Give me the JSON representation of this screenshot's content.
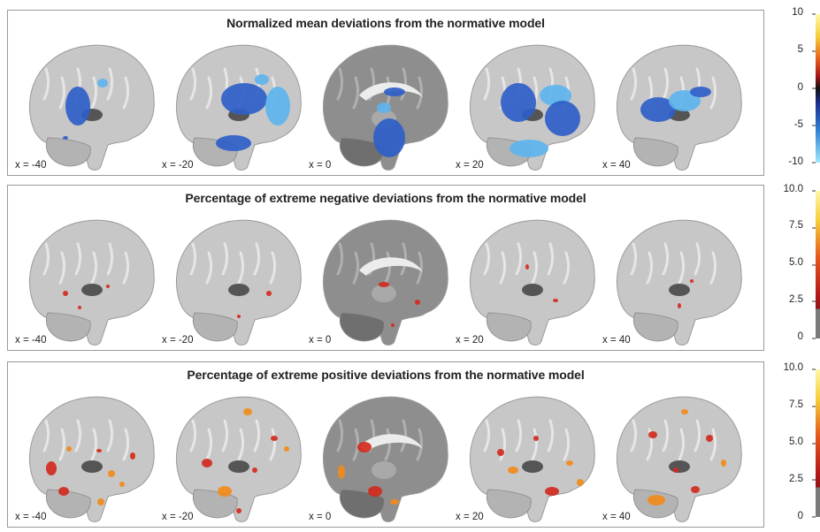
{
  "panels": [
    {
      "title": "Normalized mean deviations from the normative model",
      "type": "mean",
      "slices": [
        "x = -40",
        "x = -20",
        "x = 0",
        "x = 20",
        "x = 40"
      ]
    },
    {
      "title": "Percentage of extreme negative deviations from the normative model",
      "type": "neg",
      "slices": [
        "x = -40",
        "x = -20",
        "x = 0",
        "x = 20",
        "x = 40"
      ]
    },
    {
      "title": "Percentage of extreme positive deviations from the normative model",
      "type": "pos",
      "slices": [
        "x = -40",
        "x = -20",
        "x = 0",
        "x = 20",
        "x = 40"
      ]
    }
  ],
  "colorbars": [
    {
      "ticks": [
        "10",
        "5",
        "0",
        "-5",
        "-10"
      ],
      "scale": "diverging"
    },
    {
      "ticks": [
        "10.0",
        "7.5",
        "5.0",
        "2.5",
        "0"
      ],
      "scale": "hot"
    },
    {
      "ticks": [
        "10.0",
        "7.5",
        "5.0",
        "2.5",
        "0"
      ],
      "scale": "hot"
    }
  ],
  "colors": {
    "blue": "#2f5fc8",
    "lightblue": "#5db4ee",
    "red": "#d32a1e",
    "orange": "#f28a1a",
    "yellow": "#f6d84b"
  }
}
